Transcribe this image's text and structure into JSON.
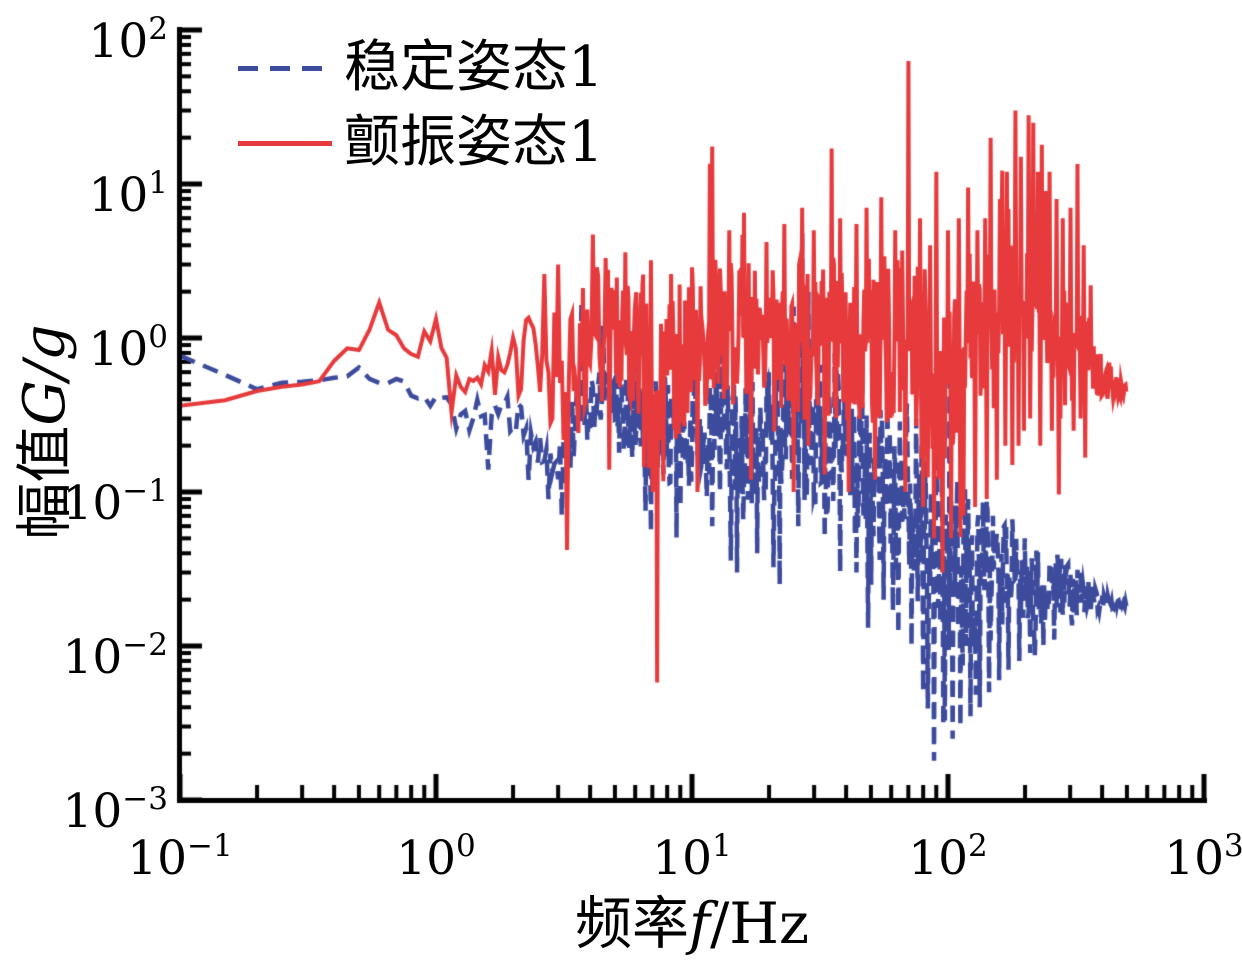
{
  "chart_data": {
    "type": "line",
    "title": "",
    "xlabel": {
      "prefix": "频率",
      "symbol": "f",
      "unit": "/Hz"
    },
    "ylabel": {
      "prefix": "幅值",
      "symbol": "G/g"
    },
    "tick_base": "10",
    "x_log_range": [
      -1,
      3
    ],
    "y_log_range": [
      -3,
      2
    ],
    "x_ticks": [
      {
        "exp": -1,
        "label": "−1"
      },
      {
        "exp": 0,
        "label": "0"
      },
      {
        "exp": 1,
        "label": "1"
      },
      {
        "exp": 2,
        "label": "2"
      },
      {
        "exp": 3,
        "label": "3"
      }
    ],
    "y_ticks": [
      {
        "exp": 2,
        "label": "2"
      },
      {
        "exp": 1,
        "label": "1"
      },
      {
        "exp": 0,
        "label": "0"
      },
      {
        "exp": -1,
        "label": "−1"
      },
      {
        "exp": -2,
        "label": "−2"
      },
      {
        "exp": -3,
        "label": "−3"
      }
    ],
    "grid": false,
    "legend_position": "top-left",
    "axis_color": "#000000",
    "series": [
      {
        "name": "稳定姿态1",
        "color": "#3D4B9D",
        "style": "dashed",
        "seed": 20,
        "start_freq": 0.1,
        "end_freq": 500,
        "envelope": [
          [
            0.1,
            -0.12,
            0.01
          ],
          [
            0.2,
            -0.33,
            0.02
          ],
          [
            0.35,
            -0.26,
            0.03
          ],
          [
            0.5,
            -0.22,
            0.03
          ],
          [
            0.7,
            -0.3,
            0.04
          ],
          [
            1.0,
            -0.42,
            0.06
          ],
          [
            1.4,
            -0.5,
            0.12
          ],
          [
            2.0,
            -0.5,
            0.15
          ],
          [
            2.8,
            -0.75,
            0.25
          ],
          [
            3.6,
            -0.55,
            0.25
          ],
          [
            4.5,
            -0.4,
            0.2
          ],
          [
            6,
            -0.55,
            0.3
          ],
          [
            8,
            -0.6,
            0.35
          ],
          [
            11,
            -0.6,
            0.4
          ],
          [
            15,
            -0.65,
            0.45
          ],
          [
            20,
            -0.6,
            0.45
          ],
          [
            27,
            -0.55,
            0.5
          ],
          [
            35,
            -0.7,
            0.5
          ],
          [
            48,
            -0.85,
            0.5
          ],
          [
            65,
            -1.05,
            0.55
          ],
          [
            85,
            -1.3,
            0.6
          ],
          [
            100,
            -1.45,
            0.6
          ],
          [
            120,
            -1.5,
            0.55
          ],
          [
            150,
            -1.5,
            0.5
          ],
          [
            180,
            -1.55,
            0.4
          ],
          [
            220,
            -1.6,
            0.3
          ],
          [
            270,
            -1.62,
            0.22
          ],
          [
            320,
            -1.65,
            0.15
          ],
          [
            380,
            -1.7,
            0.08
          ],
          [
            440,
            -1.72,
            0.04
          ],
          [
            500,
            -1.73,
            0.02
          ]
        ],
        "peaks": [
          [
            3.7,
            1.75
          ],
          [
            4.5,
            1.2
          ],
          [
            13,
            0.8
          ],
          [
            20,
            0.6
          ],
          [
            25,
            1.6
          ],
          [
            27,
            4.8
          ],
          [
            28.5,
            2.0
          ],
          [
            31,
            1.2
          ],
          [
            36,
            0.8
          ],
          [
            40,
            0.95
          ],
          [
            46,
            0.9
          ],
          [
            58,
            0.35
          ],
          [
            75,
            0.3
          ],
          [
            90,
            0.28
          ],
          [
            120,
            0.09
          ],
          [
            150,
            0.07
          ],
          [
            200,
            0.05
          ]
        ],
        "notches": [
          [
            1.6,
            0.14
          ],
          [
            2.3,
            0.12
          ],
          [
            2.75,
            0.09
          ],
          [
            3.1,
            0.07
          ],
          [
            5.2,
            0.18
          ],
          [
            7,
            0.1
          ],
          [
            9,
            0.08
          ],
          [
            12,
            0.06
          ],
          [
            15,
            0.03
          ],
          [
            18,
            0.04
          ],
          [
            22,
            0.025
          ],
          [
            26,
            0.06
          ],
          [
            33,
            0.05
          ],
          [
            38,
            0.03
          ],
          [
            44,
            0.03
          ],
          [
            50,
            0.025
          ],
          [
            56,
            0.02
          ],
          [
            64,
            0.012
          ],
          [
            72,
            0.01
          ],
          [
            80,
            0.005
          ],
          [
            88,
            0.0018
          ],
          [
            96,
            0.003
          ],
          [
            104,
            0.0025
          ],
          [
            112,
            0.003
          ],
          [
            122,
            0.0035
          ],
          [
            133,
            0.004
          ],
          [
            145,
            0.005
          ],
          [
            158,
            0.006
          ],
          [
            172,
            0.007
          ],
          [
            190,
            0.008
          ],
          [
            210,
            0.009
          ],
          [
            235,
            0.01
          ],
          [
            260,
            0.011
          ]
        ]
      },
      {
        "name": "颤振姿态1",
        "color": "#E63A3C",
        "style": "solid",
        "seed": 3,
        "start_freq": 0.1,
        "end_freq": 500,
        "envelope": [
          [
            0.1,
            -0.46,
            0.02
          ],
          [
            0.2,
            -0.36,
            0.03
          ],
          [
            0.35,
            -0.25,
            0.05
          ],
          [
            0.5,
            -0.05,
            0.08
          ],
          [
            0.6,
            0.15,
            0.1
          ],
          [
            0.75,
            -0.12,
            0.06
          ],
          [
            1.0,
            0.0,
            0.1
          ],
          [
            1.3,
            -0.35,
            0.12
          ],
          [
            1.8,
            -0.22,
            0.15
          ],
          [
            2.6,
            -0.1,
            0.35
          ],
          [
            3.2,
            -0.35,
            0.45
          ],
          [
            4.2,
            0.05,
            0.45
          ],
          [
            5.5,
            -0.05,
            0.45
          ],
          [
            7.3,
            -0.35,
            0.8
          ],
          [
            9,
            -0.1,
            0.5
          ],
          [
            12,
            0.1,
            0.55
          ],
          [
            16,
            0.0,
            0.5
          ],
          [
            22,
            -0.05,
            0.5
          ],
          [
            30,
            0.0,
            0.55
          ],
          [
            42,
            -0.05,
            0.55
          ],
          [
            60,
            0.0,
            0.6
          ],
          [
            80,
            -0.15,
            0.7
          ],
          [
            95,
            -0.35,
            0.8
          ],
          [
            110,
            -0.1,
            0.6
          ],
          [
            140,
            0.1,
            0.6
          ],
          [
            180,
            0.25,
            0.65
          ],
          [
            220,
            0.2,
            0.6
          ],
          [
            270,
            0.0,
            0.45
          ],
          [
            320,
            -0.05,
            0.4
          ],
          [
            370,
            -0.2,
            0.2
          ],
          [
            430,
            -0.28,
            0.12
          ],
          [
            500,
            -0.35,
            0.04
          ]
        ],
        "peaks": [
          [
            0.6,
            1.7
          ],
          [
            1.0,
            1.33
          ],
          [
            2.65,
            2.6
          ],
          [
            3.0,
            3.0
          ],
          [
            4.1,
            4.7
          ],
          [
            4.6,
            3.3
          ],
          [
            5.5,
            3.6
          ],
          [
            6.9,
            3.2
          ],
          [
            8.3,
            2.6
          ],
          [
            12,
            17.5
          ],
          [
            14,
            5
          ],
          [
            16,
            6.5
          ],
          [
            19.5,
            4.2
          ],
          [
            23,
            5.5
          ],
          [
            27,
            7
          ],
          [
            30,
            5
          ],
          [
            35,
            17
          ],
          [
            38,
            6
          ],
          [
            44,
            5.5
          ],
          [
            48,
            7
          ],
          [
            55,
            8.2
          ],
          [
            62,
            5
          ],
          [
            70,
            63
          ],
          [
            78,
            6
          ],
          [
            85,
            4
          ],
          [
            90,
            12
          ],
          [
            100,
            5
          ],
          [
            110,
            6
          ],
          [
            120,
            9.5
          ],
          [
            130,
            5
          ],
          [
            140,
            6
          ],
          [
            147,
            20
          ],
          [
            160,
            8
          ],
          [
            170,
            12
          ],
          [
            183,
            30
          ],
          [
            192,
            15
          ],
          [
            200,
            83
          ],
          [
            207,
            28
          ],
          [
            215,
            25
          ],
          [
            224,
            12
          ],
          [
            232,
            18
          ],
          [
            241,
            9
          ],
          [
            250,
            12
          ],
          [
            265,
            8
          ],
          [
            280,
            6
          ],
          [
            300,
            7
          ],
          [
            320,
            13.5
          ],
          [
            340,
            4
          ],
          [
            360,
            2.2
          ]
        ],
        "notches": [
          [
            1.15,
            0.33
          ],
          [
            3.25,
            0.042
          ],
          [
            7.3,
            0.0058
          ],
          [
            10.5,
            0.1
          ],
          [
            17,
            0.12
          ],
          [
            25,
            0.1
          ],
          [
            33,
            0.13
          ],
          [
            41,
            0.1
          ],
          [
            52,
            0.12
          ],
          [
            68,
            0.1
          ],
          [
            80,
            0.08
          ],
          [
            88,
            0.05
          ],
          [
            95,
            0.03
          ],
          [
            103,
            0.05
          ],
          [
            115,
            0.07
          ],
          [
            128,
            0.08
          ],
          [
            142,
            0.09
          ],
          [
            155,
            0.12
          ],
          [
            168,
            0.2
          ],
          [
            178,
            0.15
          ],
          [
            188,
            0.2
          ],
          [
            198,
            0.25
          ],
          [
            210,
            0.3
          ],
          [
            230,
            0.2
          ],
          [
            255,
            0.25
          ],
          [
            275,
            0.3
          ],
          [
            310,
            0.25
          ],
          [
            330,
            0.3
          ]
        ]
      }
    ]
  }
}
